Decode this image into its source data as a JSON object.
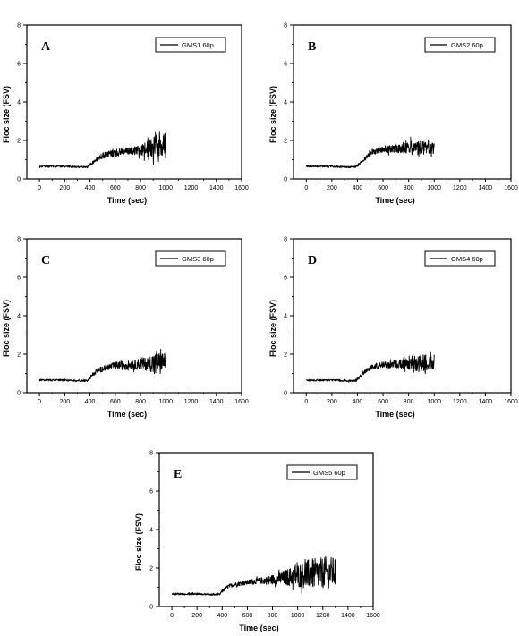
{
  "chart_data": [
    {
      "type": "line",
      "panel_label": "A",
      "xlabel": "Time (sec)",
      "ylabel": "Floc size (FSV)",
      "xlim": [
        -100,
        1600
      ],
      "ylim": [
        0,
        8
      ],
      "xticks": [
        "0",
        "200",
        "400",
        "600",
        "800",
        "1000",
        "1200",
        "1400",
        "1600"
      ],
      "yticks": [
        "0",
        "2",
        "4",
        "6",
        "8"
      ],
      "grid": false,
      "legend_position": "top-right",
      "series": [
        {
          "name": "GMS1 60p",
          "color": "#000000",
          "x": [
            0,
            100,
            200,
            300,
            380,
            400,
            450,
            500,
            550,
            600,
            650,
            700,
            750,
            800,
            850,
            900,
            950,
            1000
          ],
          "y": [
            0.65,
            0.65,
            0.65,
            0.62,
            0.62,
            0.75,
            1.0,
            1.2,
            1.3,
            1.35,
            1.4,
            1.45,
            1.5,
            1.5,
            1.55,
            1.65,
            1.75,
            1.9
          ],
          "noise": [
            0.05,
            0.05,
            0.05,
            0.05,
            0.05,
            0.08,
            0.1,
            0.15,
            0.15,
            0.2,
            0.2,
            0.2,
            0.25,
            0.3,
            0.4,
            0.6,
            0.6,
            0.6
          ]
        }
      ]
    },
    {
      "type": "line",
      "panel_label": "B",
      "xlabel": "Time (sec)",
      "ylabel": "Floc size (FSV)",
      "xlim": [
        -100,
        1600
      ],
      "ylim": [
        0,
        8
      ],
      "xticks": [
        "0",
        "200",
        "400",
        "600",
        "800",
        "1000",
        "1200",
        "1400",
        "1600"
      ],
      "yticks": [
        "0",
        "2",
        "4",
        "6",
        "8"
      ],
      "grid": false,
      "legend_position": "top-right",
      "series": [
        {
          "name": "GMS2 60p",
          "color": "#000000",
          "x": [
            0,
            100,
            200,
            300,
            380,
            400,
            450,
            500,
            550,
            600,
            650,
            700,
            750,
            800,
            850,
            900,
            950,
            1000
          ],
          "y": [
            0.65,
            0.65,
            0.65,
            0.62,
            0.62,
            0.7,
            1.0,
            1.3,
            1.45,
            1.5,
            1.55,
            1.55,
            1.55,
            1.6,
            1.6,
            1.6,
            1.6,
            1.6
          ],
          "noise": [
            0.05,
            0.05,
            0.05,
            0.05,
            0.05,
            0.08,
            0.1,
            0.15,
            0.15,
            0.15,
            0.2,
            0.2,
            0.25,
            0.35,
            0.4,
            0.35,
            0.3,
            0.3
          ]
        }
      ]
    },
    {
      "type": "line",
      "panel_label": "C",
      "xlabel": "Time (sec)",
      "ylabel": "Floc size (FSV)",
      "xlim": [
        -100,
        1600
      ],
      "ylim": [
        0,
        8
      ],
      "xticks": [
        "0",
        "200",
        "400",
        "600",
        "800",
        "1000",
        "1200",
        "1400",
        "1600"
      ],
      "yticks": [
        "0",
        "2",
        "4",
        "6",
        "8"
      ],
      "grid": false,
      "legend_position": "top-right",
      "series": [
        {
          "name": "GMS3 60p",
          "color": "#000000",
          "x": [
            0,
            100,
            200,
            300,
            380,
            400,
            450,
            500,
            550,
            600,
            650,
            700,
            750,
            800,
            850,
            900,
            950,
            1000
          ],
          "y": [
            0.65,
            0.65,
            0.65,
            0.62,
            0.62,
            0.8,
            1.1,
            1.25,
            1.35,
            1.4,
            1.45,
            1.45,
            1.45,
            1.5,
            1.5,
            1.55,
            1.6,
            1.65
          ],
          "noise": [
            0.05,
            0.05,
            0.05,
            0.05,
            0.05,
            0.08,
            0.12,
            0.15,
            0.15,
            0.2,
            0.2,
            0.2,
            0.25,
            0.3,
            0.35,
            0.5,
            0.5,
            0.4
          ]
        }
      ]
    },
    {
      "type": "line",
      "panel_label": "D",
      "xlabel": "Time (sec)",
      "ylabel": "Floc size (FSV)",
      "xlim": [
        -100,
        1600
      ],
      "ylim": [
        0,
        8
      ],
      "xticks": [
        "0",
        "200",
        "400",
        "600",
        "800",
        "1000",
        "1200",
        "1400",
        "1600"
      ],
      "yticks": [
        "0",
        "2",
        "4",
        "6",
        "8"
      ],
      "grid": false,
      "legend_position": "top-right",
      "series": [
        {
          "name": "GMS4 60p",
          "color": "#000000",
          "x": [
            0,
            100,
            200,
            300,
            380,
            400,
            450,
            500,
            550,
            600,
            650,
            700,
            750,
            800,
            850,
            900,
            950,
            1000
          ],
          "y": [
            0.65,
            0.65,
            0.65,
            0.62,
            0.62,
            0.7,
            1.05,
            1.3,
            1.4,
            1.45,
            1.45,
            1.5,
            1.5,
            1.5,
            1.55,
            1.55,
            1.55,
            1.55
          ],
          "noise": [
            0.05,
            0.05,
            0.05,
            0.05,
            0.05,
            0.08,
            0.1,
            0.12,
            0.15,
            0.15,
            0.2,
            0.2,
            0.25,
            0.3,
            0.45,
            0.5,
            0.4,
            0.35
          ]
        }
      ]
    },
    {
      "type": "line",
      "panel_label": "E",
      "xlabel": "Time (sec)",
      "ylabel": "Floc size (FSV)",
      "xlim": [
        -100,
        1600
      ],
      "ylim": [
        0,
        8
      ],
      "xticks": [
        "0",
        "200",
        "400",
        "600",
        "800",
        "1000",
        "1200",
        "1400",
        "1600"
      ],
      "yticks": [
        "0",
        "2",
        "4",
        "6",
        "8"
      ],
      "grid": false,
      "legend_position": "top-right",
      "series": [
        {
          "name": "GMS5 60p",
          "color": "#000000",
          "x": [
            0,
            100,
            200,
            300,
            380,
            400,
            450,
            500,
            550,
            600,
            650,
            700,
            750,
            800,
            850,
            900,
            950,
            1000,
            1050,
            1100,
            1150,
            1200,
            1250,
            1300
          ],
          "y": [
            0.65,
            0.65,
            0.65,
            0.62,
            0.62,
            0.8,
            1.05,
            1.15,
            1.2,
            1.25,
            1.3,
            1.35,
            1.35,
            1.4,
            1.45,
            1.5,
            1.55,
            1.6,
            1.65,
            1.7,
            1.7,
            1.75,
            1.75,
            1.8
          ],
          "noise": [
            0.05,
            0.05,
            0.05,
            0.05,
            0.05,
            0.08,
            0.1,
            0.1,
            0.12,
            0.12,
            0.15,
            0.15,
            0.2,
            0.25,
            0.3,
            0.4,
            0.5,
            0.6,
            0.7,
            0.8,
            0.8,
            0.8,
            0.8,
            0.8
          ]
        }
      ]
    }
  ]
}
